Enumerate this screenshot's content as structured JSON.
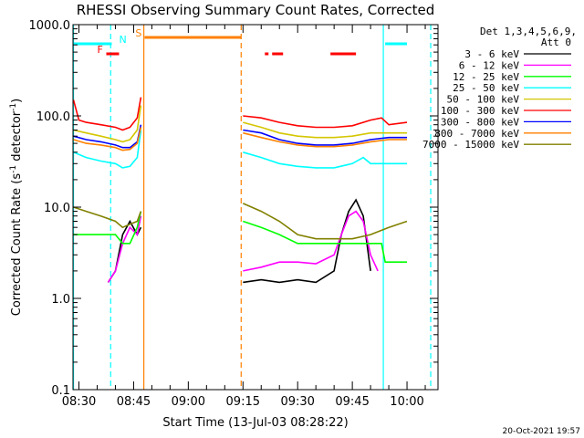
{
  "chart_data": {
    "type": "line",
    "title": "RHESSI Observing Summary Count Rates, Corrected",
    "xlabel": "Start Time (13-Jul-03 08:28:22)",
    "ylabel_pre": "Corrected Count Rate (s",
    "ylabel_sup1": "-1",
    "ylabel_mid": " detector",
    "ylabel_sup2": "-1",
    "ylabel_post": ")",
    "yscale": "log",
    "ylim": [
      0.1,
      1000
    ],
    "xlim_minutes": [
      28.37,
      128.5
    ],
    "y_ticks": [
      {
        "value": 0.1,
        "label": "0.1"
      },
      {
        "value": 1,
        "label": "1.0"
      },
      {
        "value": 10,
        "label": "10.0"
      },
      {
        "value": 100,
        "label": "100.0"
      },
      {
        "value": 1000,
        "label": "1000.0"
      }
    ],
    "x_ticks": [
      {
        "minute": 30,
        "label": "08:30"
      },
      {
        "minute": 45,
        "label": "08:45"
      },
      {
        "minute": 60,
        "label": "09:00"
      },
      {
        "minute": 75,
        "label": "09:15"
      },
      {
        "minute": 90,
        "label": "09:30"
      },
      {
        "minute": 105,
        "label": "09:45"
      },
      {
        "minute": 120,
        "label": "10:00"
      }
    ],
    "legend_header1": "Det 1,3,4,5,6,9,",
    "legend_header2": "Att 0",
    "series": [
      {
        "name": "3 - 6 keV",
        "color": "#000000",
        "segments": [
          {
            "x": [
              38,
              40,
              42,
              44,
              46,
              47
            ],
            "y": [
              1.5,
              2,
              5,
              7,
              5,
              6
            ]
          },
          {
            "x": [
              75,
              80,
              85,
              90,
              95,
              100,
              102,
              104,
              106,
              108,
              110
            ],
            "y": [
              1.5,
              1.6,
              1.5,
              1.6,
              1.5,
              2,
              5,
              9,
              12,
              8,
              2
            ]
          }
        ]
      },
      {
        "name": "6 - 12 keV",
        "color": "#ff00ff",
        "segments": [
          {
            "x": [
              38,
              40,
              42,
              44,
              46,
              47
            ],
            "y": [
              1.5,
              2,
              4,
              6,
              5,
              8
            ]
          },
          {
            "x": [
              75,
              80,
              85,
              90,
              95,
              100,
              102,
              104,
              106,
              108,
              110,
              112
            ],
            "y": [
              2,
              2.2,
              2.5,
              2.5,
              2.4,
              3,
              5,
              8,
              9,
              7,
              3,
              2
            ]
          }
        ]
      },
      {
        "name": "12 - 25 keV",
        "color": "#00ff00",
        "segments": [
          {
            "x": [
              28.5,
              32,
              36,
              40,
              42,
              44,
              46,
              47
            ],
            "y": [
              5,
              5,
              5,
              5,
              4,
              4,
              6,
              9
            ]
          },
          {
            "x": [
              75,
              80,
              85,
              90,
              95,
              100,
              105,
              110,
              113,
              114,
              119,
              120
            ],
            "y": [
              7,
              6,
              5,
              4,
              4,
              4,
              4,
              4,
              4,
              2.5,
              2.5,
              2.5
            ]
          }
        ]
      },
      {
        "name": "25 - 50 keV",
        "color": "#00ffff",
        "segments": [
          {
            "x": [
              28.5,
              32,
              36,
              40,
              42,
              44,
              46,
              47
            ],
            "y": [
              40,
              35,
              32,
              30,
              27,
              28,
              35,
              70
            ]
          },
          {
            "x": [
              75,
              80,
              85,
              90,
              95,
              100,
              105,
              108,
              110,
              115,
              120
            ],
            "y": [
              40,
              35,
              30,
              28,
              27,
              27,
              30,
              35,
              30,
              30,
              30
            ]
          }
        ]
      },
      {
        "name": "50 - 100 keV",
        "color": "#d4c600",
        "segments": [
          {
            "x": [
              28.5,
              32,
              36,
              40,
              42,
              44,
              46,
              47
            ],
            "y": [
              70,
              65,
              60,
              55,
              52,
              55,
              70,
              130
            ]
          },
          {
            "x": [
              75,
              80,
              85,
              90,
              95,
              100,
              105,
              110,
              115,
              120
            ],
            "y": [
              85,
              75,
              65,
              60,
              58,
              58,
              60,
              65,
              65,
              65
            ]
          }
        ]
      },
      {
        "name": "100 - 300 keV",
        "color": "#ff0000",
        "segments": [
          {
            "x": [
              28.5,
              30,
              32,
              36,
              40,
              42,
              44,
              46,
              47
            ],
            "y": [
              150,
              90,
              85,
              80,
              75,
              70,
              75,
              95,
              160
            ]
          },
          {
            "x": [
              75,
              80,
              85,
              90,
              95,
              100,
              105,
              110,
              113,
              115,
              120
            ],
            "y": [
              100,
              95,
              85,
              78,
              75,
              75,
              78,
              90,
              95,
              80,
              85
            ]
          }
        ]
      },
      {
        "name": "300 - 800 keV",
        "color": "#0000ff",
        "segments": [
          {
            "x": [
              28.5,
              32,
              36,
              40,
              42,
              44,
              46,
              47
            ],
            "y": [
              60,
              55,
              52,
              48,
              45,
              45,
              52,
              80
            ]
          },
          {
            "x": [
              75,
              80,
              85,
              90,
              95,
              100,
              105,
              110,
              115,
              120
            ],
            "y": [
              70,
              65,
              55,
              50,
              48,
              48,
              50,
              55,
              58,
              58
            ]
          }
        ]
      },
      {
        "name": "800 - 7000 keV",
        "color": "#ff8000",
        "segments": [
          {
            "x": [
              28.5,
              32,
              36,
              40,
              42,
              44,
              46,
              47
            ],
            "y": [
              55,
              50,
              48,
              45,
              42,
              43,
              50,
              75
            ]
          },
          {
            "x": [
              75,
              80,
              85,
              90,
              95,
              100,
              105,
              110,
              115,
              120
            ],
            "y": [
              65,
              58,
              52,
              48,
              46,
              46,
              48,
              52,
              55,
              55
            ]
          }
        ]
      },
      {
        "name": "7000 - 15000 keV",
        "color": "#808000",
        "segments": [
          {
            "x": [
              28.5,
              32,
              36,
              40,
              42,
              44,
              46,
              47
            ],
            "y": [
              10,
              9,
              8,
              7,
              6,
              6.5,
              7,
              9
            ]
          },
          {
            "x": [
              75,
              80,
              85,
              90,
              95,
              100,
              105,
              110,
              115,
              120
            ],
            "y": [
              11,
              9,
              7,
              5,
              4.5,
              4.5,
              4.5,
              5,
              6,
              7
            ]
          }
        ]
      }
    ],
    "flag_bars": [
      {
        "label": "N",
        "color": "#00ffff",
        "label_color": "#00ffff",
        "segments": [
          [
            28.5,
            39
          ],
          [
            114,
            120
          ]
        ]
      },
      {
        "label": "S",
        "color": "#ff8000",
        "label_color": "#ff8000",
        "segments": [
          [
            48,
            74.5
          ]
        ]
      },
      {
        "label": "F",
        "color": "#ff0000",
        "label_color": "#ff0000",
        "segments": [
          [
            37.5,
            41
          ],
          [
            81,
            82
          ],
          [
            83,
            86
          ],
          [
            99,
            106
          ]
        ]
      }
    ],
    "vlines": [
      {
        "minute": 28.5,
        "color": "#00ffff",
        "dashed": false
      },
      {
        "minute": 38.7,
        "color": "#00ffff",
        "dashed": true
      },
      {
        "minute": 47.8,
        "color": "#ff8000",
        "dashed": false
      },
      {
        "minute": 74.5,
        "color": "#ff8000",
        "dashed": true
      },
      {
        "minute": 113.5,
        "color": "#00ffff",
        "dashed": false
      },
      {
        "minute": 126.5,
        "color": "#00ffff",
        "dashed": true
      }
    ]
  },
  "timestamp": "20-Oct-2021 19:57"
}
